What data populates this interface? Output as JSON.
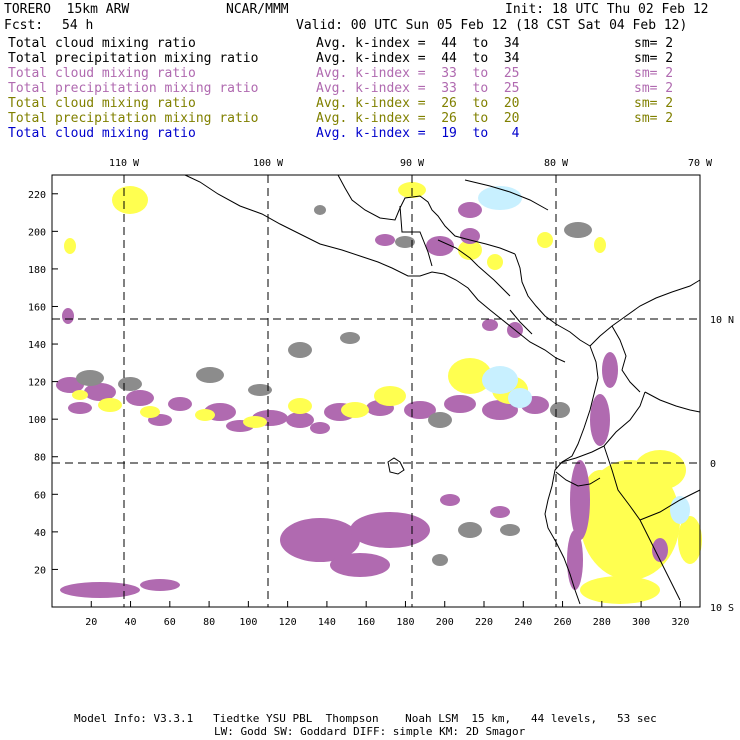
{
  "header": {
    "model": "TORERO  15km ARW",
    "org": "NCAR/MMM",
    "init": "Init: 18 UTC Thu 02 Feb 12",
    "fcst_label": "Fcst:",
    "fcst_value": "54 h",
    "valid": "Valid: 00 UTC Sun 05 Feb 12 (18 CST Sat 04 Feb 12)"
  },
  "legend": [
    {
      "field": "Total cloud mixing ratio",
      "index": "Avg. k-index =  44  to  34",
      "sm": "sm= 2",
      "color": "#000000"
    },
    {
      "field": "Total precipitation mixing ratio",
      "index": "Avg. k-index =  44  to  34",
      "sm": "sm= 2",
      "color": "#000000"
    },
    {
      "field": "Total cloud mixing ratio",
      "index": "Avg. k-index =  33  to  25",
      "sm": "sm= 2",
      "color": "#b06ab0"
    },
    {
      "field": "Total precipitation mixing ratio",
      "index": "Avg. k-index =  33  to  25",
      "sm": "sm= 2",
      "color": "#b06ab0"
    },
    {
      "field": "Total cloud mixing ratio",
      "index": "Avg. k-index =  26  to  20",
      "sm": "sm= 2",
      "color": "#808000"
    },
    {
      "field": "Total precipitation mixing ratio",
      "index": "Avg. k-index =  26  to  20",
      "sm": "sm= 2",
      "color": "#808000"
    },
    {
      "field": "Total cloud mixing ratio",
      "index": "Avg. k-index =  19  to   4",
      "sm": "",
      "color": "#0000cc"
    }
  ],
  "axes": {
    "top_lon_labels": [
      "110 W",
      "100 W",
      "90 W",
      "80 W",
      "70 W"
    ],
    "right_lat_labels": [
      "10 N",
      "0",
      "10 S"
    ],
    "x_ticks": [
      "20",
      "40",
      "60",
      "80",
      "100",
      "120",
      "140",
      "160",
      "180",
      "200",
      "220",
      "240",
      "260",
      "280",
      "300",
      "320"
    ],
    "y_ticks": [
      "20",
      "40",
      "60",
      "80",
      "100",
      "120",
      "140",
      "160",
      "180",
      "200",
      "220"
    ],
    "x_range": [
      0,
      330
    ],
    "y_range": [
      0,
      230
    ]
  },
  "colors": {
    "gray": "#8c8c8c",
    "purple": "#b06ab0",
    "yellow": "#ffff50",
    "light_blue": "#c8f0ff"
  },
  "footer": {
    "line1": "Model Info: V3.3.1   Tiedtke YSU PBL  Thompson    Noah LSM  15 km,   44 levels,   53 sec",
    "line2": "LW: Godd SW: Goddard DIFF: simple KM: 2D Smagor"
  }
}
